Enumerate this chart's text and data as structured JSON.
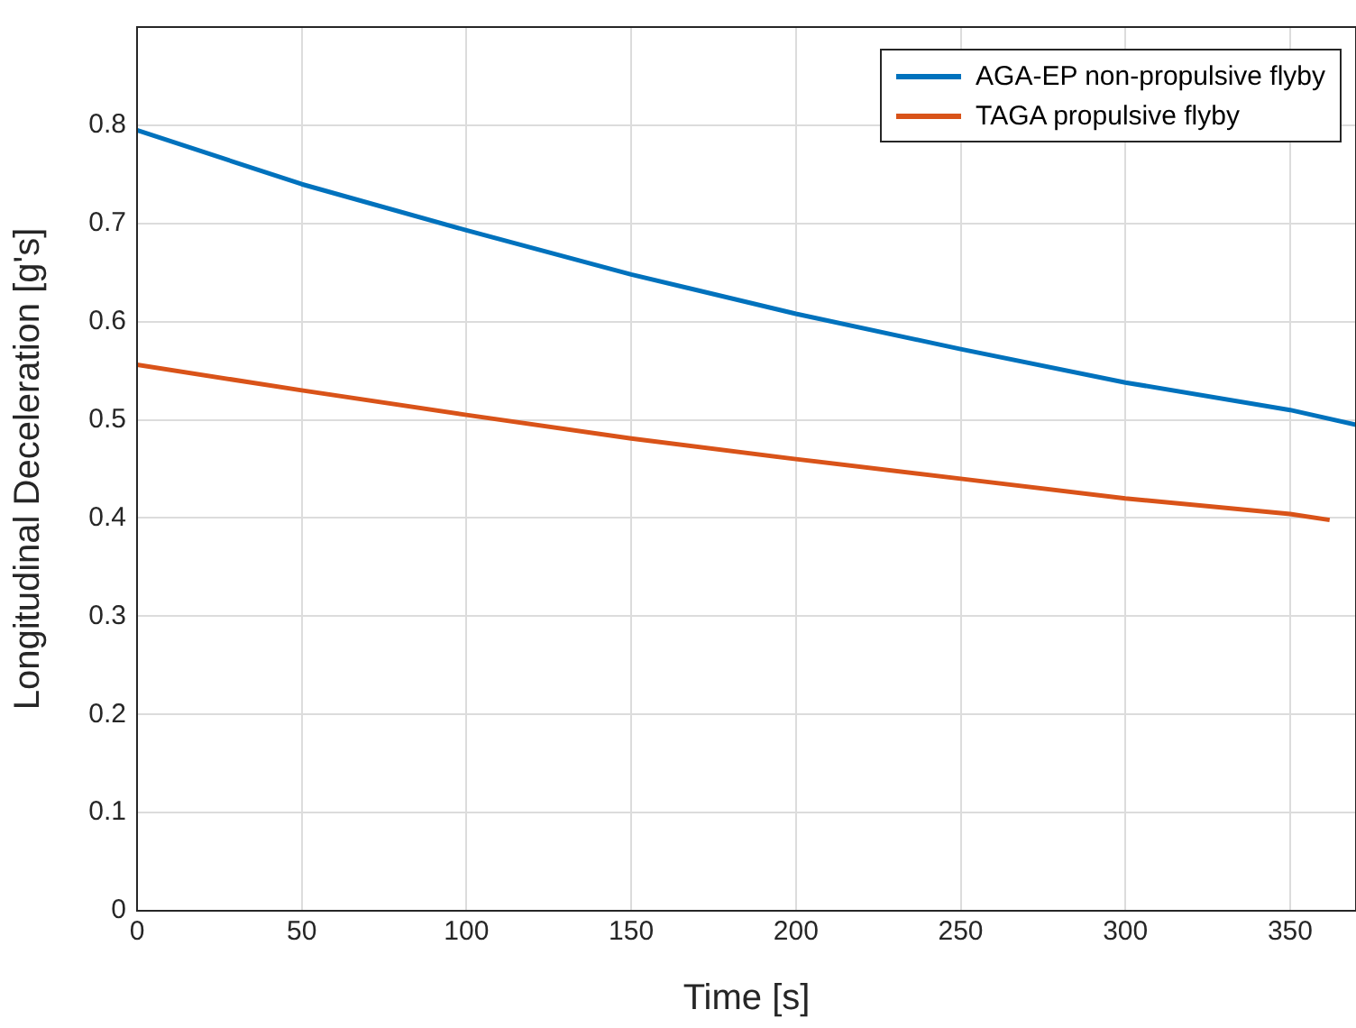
{
  "chart_data": {
    "type": "line",
    "xlabel": "Time [s]",
    "ylabel": "Longitudinal Deceleration [g's]",
    "xlim": [
      0,
      370
    ],
    "xticks": [
      0,
      50,
      100,
      150,
      200,
      250,
      300,
      350
    ],
    "ylim": [
      0,
      0.9
    ],
    "yticks": [
      0,
      0.1,
      0.2,
      0.3,
      0.4,
      0.5,
      0.6,
      0.7,
      0.8
    ],
    "grid": true,
    "legend": "top right",
    "marker": "none",
    "line_style": "solid",
    "series": [
      {
        "name": "AGA-EP non-propulsive flyby",
        "color": "#0072bd",
        "x": [
          0,
          50,
          100,
          150,
          200,
          250,
          300,
          350,
          370
        ],
        "values": [
          0.795,
          0.74,
          0.693,
          0.648,
          0.608,
          0.572,
          0.538,
          0.51,
          0.495
        ]
      },
      {
        "name": "TAGA propulsive flyby",
        "color": "#d95319",
        "x": [
          0,
          50,
          100,
          150,
          200,
          250,
          300,
          350,
          362
        ],
        "values": [
          0.556,
          0.53,
          0.505,
          0.481,
          0.46,
          0.44,
          0.42,
          0.404,
          0.398
        ]
      }
    ]
  }
}
